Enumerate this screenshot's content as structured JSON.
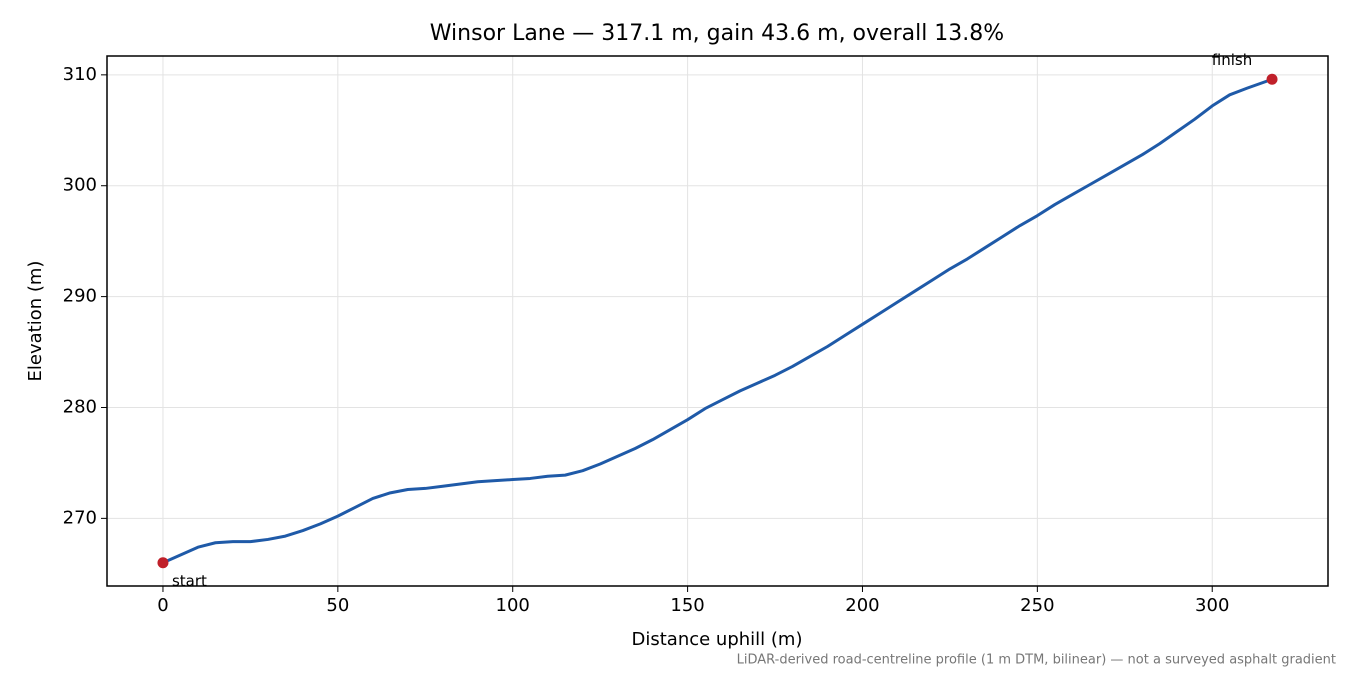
{
  "chart_data": {
    "type": "line",
    "title": "Winsor Lane — 317.1 m, gain 43.6 m, overall 13.8%",
    "xlabel": "Distance uphill (m)",
    "ylabel": "Elevation (m)",
    "note": "LiDAR-derived road-centreline profile (1 m DTM, bilinear) — not a surveyed asphalt gradient",
    "color": "#1f5aa8",
    "x": [
      0,
      5,
      10,
      15,
      20,
      25,
      30,
      35,
      40,
      45,
      50,
      55,
      60,
      65,
      70,
      75,
      80,
      85,
      90,
      95,
      100,
      105,
      110,
      115,
      120,
      125,
      130,
      135,
      140,
      145,
      150,
      155,
      160,
      165,
      170,
      175,
      180,
      185,
      190,
      195,
      200,
      205,
      210,
      215,
      220,
      225,
      230,
      235,
      240,
      245,
      250,
      255,
      260,
      265,
      270,
      275,
      280,
      285,
      290,
      295,
      300,
      305,
      310,
      317.1
    ],
    "values": [
      266.0,
      266.7,
      267.4,
      267.8,
      267.9,
      267.9,
      268.1,
      268.4,
      268.9,
      269.5,
      270.2,
      271.0,
      271.8,
      272.3,
      272.6,
      272.7,
      272.9,
      273.1,
      273.3,
      273.4,
      273.5,
      273.6,
      273.8,
      273.9,
      274.3,
      274.9,
      275.6,
      276.3,
      277.1,
      278.0,
      278.9,
      279.9,
      280.7,
      281.5,
      282.2,
      282.9,
      283.7,
      284.6,
      285.5,
      286.5,
      287.5,
      288.5,
      289.5,
      290.5,
      291.5,
      292.5,
      293.4,
      294.4,
      295.4,
      296.4,
      297.3,
      298.3,
      299.2,
      300.1,
      301.0,
      301.9,
      302.8,
      303.8,
      304.9,
      306.0,
      307.2,
      308.2,
      308.8,
      309.6
    ],
    "points": [
      {
        "x": 0,
        "y": 266.0,
        "label": "start"
      },
      {
        "x": 317.1,
        "y": 309.6,
        "label": "finish"
      }
    ],
    "point_color": "#c0202a",
    "xlim": [
      -16,
      333.1
    ],
    "ylim": [
      263.9,
      311.7
    ],
    "xticks": [
      0,
      50,
      100,
      150,
      200,
      250,
      300
    ],
    "yticks": [
      270,
      280,
      290,
      300,
      310
    ],
    "grid": true
  }
}
